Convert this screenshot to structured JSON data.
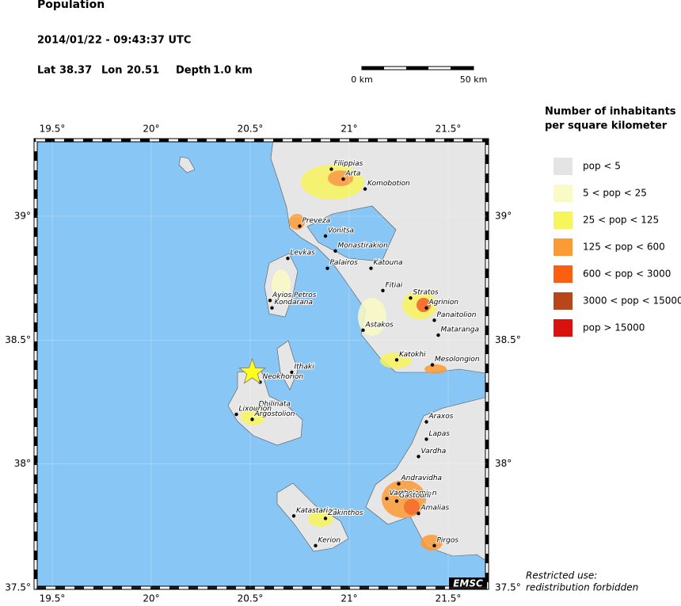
{
  "header": {
    "title": "Population",
    "datetime": "2014/01/22 - 09:43:37 UTC",
    "lat_label": "Lat",
    "lat": 38.37,
    "lon_label": "Lon",
    "lon": 20.51,
    "depth_label": "Depth",
    "depth": "1.0 km"
  },
  "scale_bar": {
    "start": "0 km",
    "end": "50 km"
  },
  "map": {
    "lonlim": [
      19.416,
      21.696
    ],
    "latlim": [
      37.5,
      39.307
    ],
    "lonticks": [
      {
        "value": 19.5,
        "label": "19.5°"
      },
      {
        "value": 20,
        "label": "20°"
      },
      {
        "value": 20.5,
        "label": "20.5°"
      },
      {
        "value": 21,
        "label": "21°"
      },
      {
        "value": 21.5,
        "label": "21.5°"
      }
    ],
    "latticks": [
      {
        "value": 37.5,
        "label": "37.5°"
      },
      {
        "value": 38,
        "label": "38°"
      },
      {
        "value": 38.5,
        "label": "38.5°"
      },
      {
        "value": 39,
        "label": "39°"
      }
    ],
    "towns": [
      {
        "name": "Filippias",
        "lon": 20.91,
        "lat": 39.19
      },
      {
        "name": "Arta",
        "lon": 20.97,
        "lat": 39.15
      },
      {
        "name": "Komobotion",
        "lon": 21.08,
        "lat": 39.11
      },
      {
        "name": "Preveza",
        "lon": 20.75,
        "lat": 38.96
      },
      {
        "name": "Vonitsa",
        "lon": 20.88,
        "lat": 38.92
      },
      {
        "name": "Monastirakion",
        "lon": 20.93,
        "lat": 38.86
      },
      {
        "name": "Levkas",
        "lon": 20.69,
        "lat": 38.83
      },
      {
        "name": "Palairos",
        "lon": 20.89,
        "lat": 38.79
      },
      {
        "name": "Katouna",
        "lon": 21.11,
        "lat": 38.79
      },
      {
        "name": "Fitiai",
        "lon": 21.17,
        "lat": 38.7
      },
      {
        "name": "Stratos",
        "lon": 21.31,
        "lat": 38.67
      },
      {
        "name": "Agrinion",
        "lon": 21.39,
        "lat": 38.63
      },
      {
        "name": "Panaitolion",
        "lon": 21.43,
        "lat": 38.58
      },
      {
        "name": "Mataranga",
        "lon": 21.45,
        "lat": 38.52
      },
      {
        "name": "Ayios Petros",
        "lon": 20.6,
        "lat": 38.66
      },
      {
        "name": "Kondarana",
        "lon": 20.61,
        "lat": 38.63
      },
      {
        "name": "Astakos",
        "lon": 21.07,
        "lat": 38.54
      },
      {
        "name": "Katokhi",
        "lon": 21.24,
        "lat": 38.42
      },
      {
        "name": "Mesolongion",
        "lon": 21.42,
        "lat": 38.4
      },
      {
        "name": "Ithaki",
        "lon": 20.71,
        "lat": 38.37
      },
      {
        "name": "Neokhorion",
        "lon": 20.55,
        "lat": 38.33
      },
      {
        "name": "Dhilinata",
        "lon": 20.53,
        "lat": 38.22
      },
      {
        "name": "Lixourion",
        "lon": 20.43,
        "lat": 38.2
      },
      {
        "name": "Argostolion",
        "lon": 20.51,
        "lat": 38.18
      },
      {
        "name": "Araxos",
        "lon": 21.39,
        "lat": 38.17
      },
      {
        "name": "Lapas",
        "lon": 21.39,
        "lat": 38.1
      },
      {
        "name": "Vardha",
        "lon": 21.35,
        "lat": 38.03
      },
      {
        "name": "Andravidha",
        "lon": 21.25,
        "lat": 37.92
      },
      {
        "name": "Vartholomion",
        "lon": 21.19,
        "lat": 37.86
      },
      {
        "name": "Gastouni",
        "lon": 21.24,
        "lat": 37.85
      },
      {
        "name": "Amalias",
        "lon": 21.35,
        "lat": 37.8
      },
      {
        "name": "Katastarion",
        "lon": 20.72,
        "lat": 37.79
      },
      {
        "name": "Zakinthos",
        "lon": 20.88,
        "lat": 37.78
      },
      {
        "name": "Kerion",
        "lon": 20.83,
        "lat": 37.67
      },
      {
        "name": "Pirgos",
        "lon": 21.43,
        "lat": 37.67
      }
    ]
  },
  "legend": {
    "title_line1": "Number of inhabitants",
    "title_line2": "per square kilometer",
    "classes": [
      {
        "label": "pop < 5",
        "color": "#e4e4e4"
      },
      {
        "label": "5 < pop < 25",
        "color": "#fafac6"
      },
      {
        "label": "25 < pop < 125",
        "color": "#f7f55c"
      },
      {
        "label": "125 < pop < 600",
        "color": "#fb9b35"
      },
      {
        "label": "600 < pop < 3000",
        "color": "#fb5f12"
      },
      {
        "label": "3000 < pop < 15000",
        "color": "#b7461a"
      },
      {
        "label": "pop > 15000",
        "color": "#d9120f"
      }
    ]
  },
  "footer": {
    "line1": "Restricted use:",
    "line2": "redistribution forbidden",
    "badge": "EMSC"
  }
}
